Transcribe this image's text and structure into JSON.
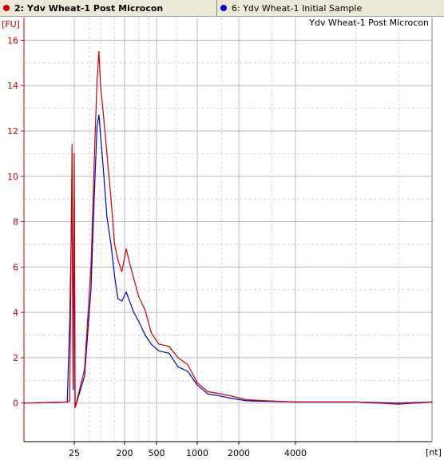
{
  "tabs": [
    {
      "label": "2: Ydv Wheat-1 Post Microcon",
      "color": "#cc0000",
      "active": true
    },
    {
      "label": "6: Ydv Wheat-1 Initial Sample",
      "color": "#0000cc",
      "active": false
    }
  ],
  "chart_data": {
    "type": "line",
    "title": "Ydv Wheat-1 Post Microcon",
    "ylabel": "[FU]",
    "xlabel": "[nt]",
    "x_scale": "non-linear (electrophoresis sizing)",
    "ylim": [
      -1.7,
      17
    ],
    "yticks": [
      0,
      2,
      4,
      6,
      8,
      10,
      12,
      14,
      16
    ],
    "xticks": [
      25,
      200,
      500,
      1000,
      2000,
      4000
    ],
    "grid": true,
    "series": [
      {
        "name": "2: Ydv Wheat-1 Post Microcon",
        "color": "#cc0000",
        "points": [
          [
            10,
            0
          ],
          [
            22,
            0.05
          ],
          [
            23,
            0.1
          ],
          [
            24,
            11.4
          ],
          [
            24.5,
            0.8
          ],
          [
            25,
            11.0
          ],
          [
            26,
            -0.2
          ],
          [
            40,
            1.5
          ],
          [
            55,
            6.0
          ],
          [
            70,
            11.5
          ],
          [
            80,
            14.2
          ],
          [
            90,
            15.5
          ],
          [
            100,
            14.0
          ],
          [
            110,
            12.5
          ],
          [
            120,
            11.0
          ],
          [
            135,
            9.0
          ],
          [
            150,
            7.0
          ],
          [
            165,
            6.3
          ],
          [
            185,
            5.8
          ],
          [
            210,
            6.8
          ],
          [
            230,
            6.2
          ],
          [
            260,
            5.5
          ],
          [
            300,
            4.7
          ],
          [
            360,
            4.1
          ],
          [
            430,
            3.1
          ],
          [
            520,
            2.6
          ],
          [
            620,
            2.5
          ],
          [
            720,
            2.0
          ],
          [
            850,
            1.7
          ],
          [
            1000,
            0.9
          ],
          [
            1200,
            0.5
          ],
          [
            1500,
            0.4
          ],
          [
            1800,
            0.3
          ],
          [
            2200,
            0.15
          ],
          [
            2800,
            0.1
          ],
          [
            4000,
            0.05
          ],
          [
            6000,
            0.05
          ],
          [
            8000,
            -0.05
          ],
          [
            10000,
            0.05
          ]
        ]
      },
      {
        "name": "6: Ydv Wheat-1 Initial Sample",
        "color": "#0000cc",
        "points": [
          [
            10,
            0
          ],
          [
            22,
            0.05
          ],
          [
            23,
            3.5
          ],
          [
            24,
            9.5
          ],
          [
            24.5,
            0.6
          ],
          [
            25,
            8.5
          ],
          [
            26,
            -0.2
          ],
          [
            40,
            1.2
          ],
          [
            55,
            5.0
          ],
          [
            70,
            9.8
          ],
          [
            80,
            12.2
          ],
          [
            90,
            12.7
          ],
          [
            100,
            11.8
          ],
          [
            110,
            10.0
          ],
          [
            120,
            8.2
          ],
          [
            135,
            7.0
          ],
          [
            150,
            5.6
          ],
          [
            165,
            4.6
          ],
          [
            185,
            4.5
          ],
          [
            210,
            4.9
          ],
          [
            230,
            4.5
          ],
          [
            260,
            4.0
          ],
          [
            300,
            3.6
          ],
          [
            360,
            3.0
          ],
          [
            430,
            2.6
          ],
          [
            520,
            2.3
          ],
          [
            620,
            2.2
          ],
          [
            720,
            1.6
          ],
          [
            850,
            1.4
          ],
          [
            1000,
            0.8
          ],
          [
            1200,
            0.4
          ],
          [
            1500,
            0.3
          ],
          [
            1800,
            0.2
          ],
          [
            2200,
            0.1
          ],
          [
            2800,
            0.08
          ],
          [
            4000,
            0.05
          ],
          [
            6000,
            0.05
          ],
          [
            8000,
            0.0
          ],
          [
            10000,
            0.05
          ]
        ]
      }
    ]
  }
}
